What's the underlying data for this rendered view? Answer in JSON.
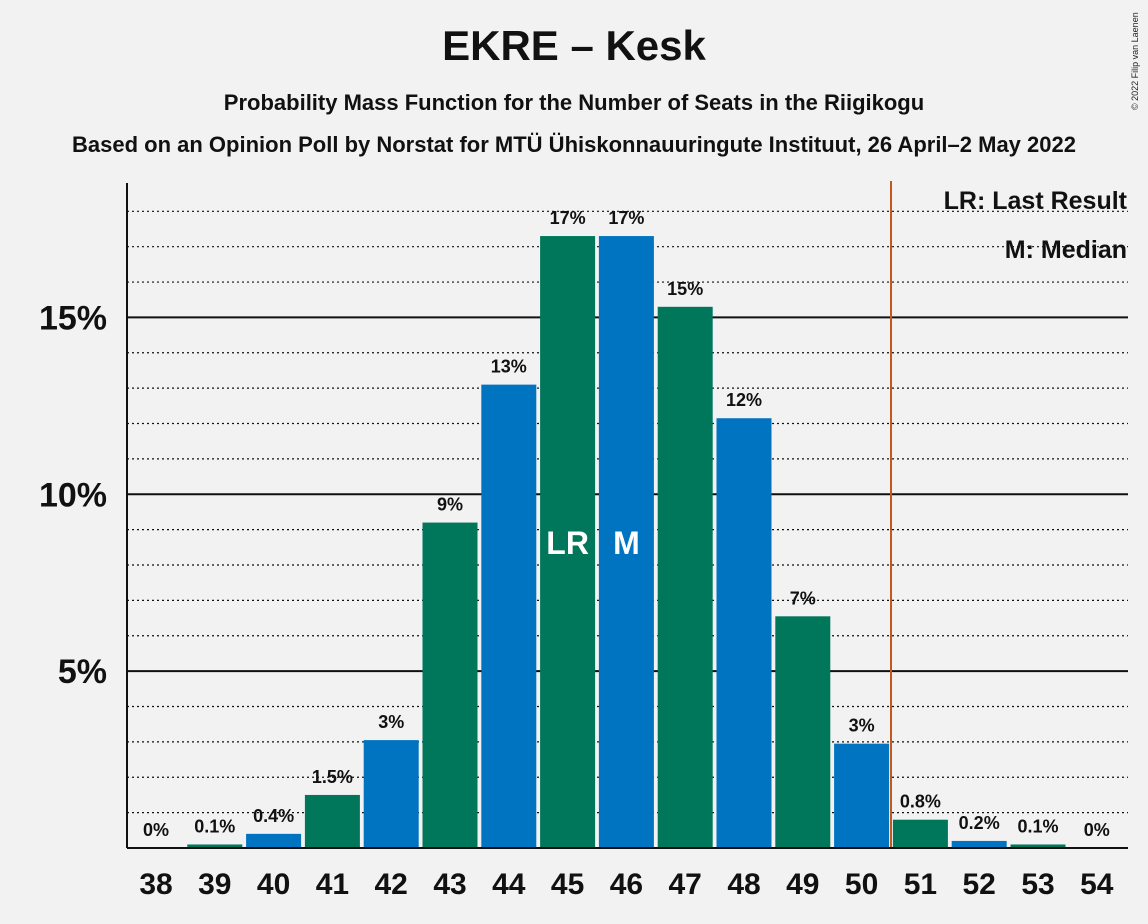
{
  "header": {
    "title": "EKRE – Kesk",
    "subtitle": "Probability Mass Function for the Number of Seats in the Riigikogu",
    "source": "Based on an Opinion Poll by Norstat for MTÜ Ühiskonnauuringute Instituut, 26 April–2 May 2022",
    "copyright": "© 2022 Filip van Laenen"
  },
  "colors": {
    "green": "#00775a",
    "blue": "#0074c0",
    "majority_line": "#c45a1a",
    "background": "#f2f2f2"
  },
  "chart_data": {
    "type": "bar",
    "categories": [
      "38",
      "39",
      "40",
      "41",
      "42",
      "43",
      "44",
      "45",
      "46",
      "47",
      "48",
      "49",
      "50",
      "51",
      "52",
      "53",
      "54"
    ],
    "values": [
      0,
      0.1,
      0.4,
      1.5,
      3.05,
      9.2,
      13.1,
      17.3,
      17.3,
      15.3,
      12.15,
      6.55,
      2.95,
      0.8,
      0.2,
      0.1,
      0
    ],
    "labels": [
      "0%",
      "0.1%",
      "0.4%",
      "1.5%",
      "3%",
      "9%",
      "13%",
      "17%",
      "17%",
      "15%",
      "12%",
      "7%",
      "3%",
      "0.8%",
      "0.2%",
      "0.1%",
      "0%"
    ],
    "bar_colors": [
      "green",
      "green",
      "blue",
      "green",
      "blue",
      "green",
      "blue",
      "green",
      "blue",
      "green",
      "blue",
      "green",
      "blue",
      "green",
      "blue",
      "green",
      "blue"
    ],
    "ylim": [
      0,
      18.8
    ],
    "yticks": [
      {
        "value": 5,
        "label": "5%"
      },
      {
        "value": 10,
        "label": "10%"
      },
      {
        "value": 15,
        "label": "15%"
      }
    ],
    "minor_grid_step": 1,
    "grid": true,
    "last_result": {
      "seat": "45",
      "label": "LR"
    },
    "median": {
      "seat": "46",
      "label": "M"
    },
    "majority_after": "50",
    "legend": [
      "LR: Last Result",
      "M: Median"
    ],
    "legend_position": "top-right"
  }
}
